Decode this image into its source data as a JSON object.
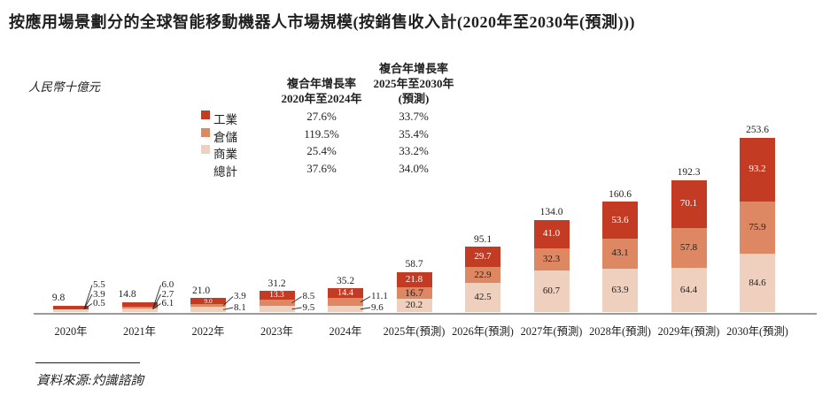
{
  "title": "按應用場景劃分的全球智能移動機器人市場規模(按銷售收入計(2020年至2030年(預測)))",
  "unit_label": "人民幣十億元",
  "source": "資料來源:灼識諮詢",
  "colors": {
    "industrial": "#c33b22",
    "warehousing": "#dd8763",
    "commercial": "#efcfbd",
    "axis": "#9a9a9a"
  },
  "legend": {
    "col1_header": [
      "複合年增長率",
      "2020年至2024年"
    ],
    "col2_header": [
      "複合年增長率",
      "2025年至2030年",
      "(預測)"
    ],
    "rows": [
      {
        "label": "工業",
        "swatch": "industrial",
        "cagr1": "27.6%",
        "cagr2": "33.7%"
      },
      {
        "label": "倉儲",
        "swatch": "warehousing",
        "cagr1": "119.5%",
        "cagr2": "35.4%"
      },
      {
        "label": "商業",
        "swatch": "commercial",
        "cagr1": "25.4%",
        "cagr2": "33.2%"
      },
      {
        "label": "總計",
        "swatch": null,
        "cagr1": "37.6%",
        "cagr2": "34.0%"
      }
    ]
  },
  "chart_data": {
    "type": "bar",
    "stacked": true,
    "title": "按應用場景劃分的全球智能移動機器人市場規模(按銷售收入計(2020年至2030年(預測)))",
    "ylabel": "人民幣十億元",
    "legend_position": "top-left",
    "grid": false,
    "categories": [
      "2020年",
      "2021年",
      "2022年",
      "2023年",
      "2024年",
      "2025年(預測)",
      "2026年(預測)",
      "2027年(預測)",
      "2028年(預測)",
      "2029年(預測)",
      "2030年(預測)"
    ],
    "series": [
      {
        "name": "商業",
        "color_key": "commercial",
        "values": [
          3.9,
          6.1,
          8.1,
          9.5,
          9.6,
          20.2,
          42.5,
          60.7,
          63.9,
          64.4,
          84.6
        ]
      },
      {
        "name": "倉儲",
        "color_key": "warehousing",
        "values": [
          0.5,
          2.7,
          3.9,
          8.5,
          11.1,
          16.7,
          22.9,
          32.3,
          43.1,
          57.8,
          75.9
        ]
      },
      {
        "name": "工業",
        "color_key": "industrial",
        "values": [
          5.5,
          6.0,
          9.0,
          13.3,
          14.4,
          21.8,
          29.7,
          41.0,
          53.6,
          70.1,
          93.2
        ]
      }
    ],
    "totals": [
      "9.8",
      "14.8",
      "21.0",
      "31.2",
      "35.2",
      "58.7",
      "95.1",
      "134.0",
      "160.6",
      "192.3",
      "253.6"
    ],
    "inside_labels": [
      [],
      [],
      [
        "工業"
      ],
      [
        "工業"
      ],
      [
        "工業"
      ],
      [
        "工業",
        "倉儲",
        "商業"
      ],
      [
        "工業",
        "倉儲",
        "商業"
      ],
      [
        "工業",
        "倉儲",
        "商業"
      ],
      [
        "工業",
        "倉儲",
        "商業"
      ],
      [
        "工業",
        "倉儲",
        "商業"
      ],
      [
        "工業",
        "倉儲",
        "商業"
      ]
    ],
    "callouts": [
      [
        {
          "value": "5.5",
          "segment": "工業"
        },
        {
          "value": "3.9",
          "segment": "商業"
        },
        {
          "value": "0.5",
          "segment": "倉儲"
        }
      ],
      [
        {
          "value": "6.0",
          "segment": "工業"
        },
        {
          "value": "2.7",
          "segment": "倉儲"
        },
        {
          "value": "6.1",
          "segment": "商業"
        }
      ],
      [
        {
          "value": "3.9",
          "segment": "倉儲"
        },
        {
          "value": "8.1",
          "segment": "商業"
        }
      ],
      [
        {
          "value": "8.5",
          "segment": "倉儲"
        },
        {
          "value": "9.5",
          "segment": "商業"
        }
      ],
      [
        {
          "value": "11.1",
          "segment": "倉儲"
        },
        {
          "value": "9.6",
          "segment": "商業"
        }
      ],
      [],
      [],
      [],
      [],
      [],
      []
    ]
  }
}
